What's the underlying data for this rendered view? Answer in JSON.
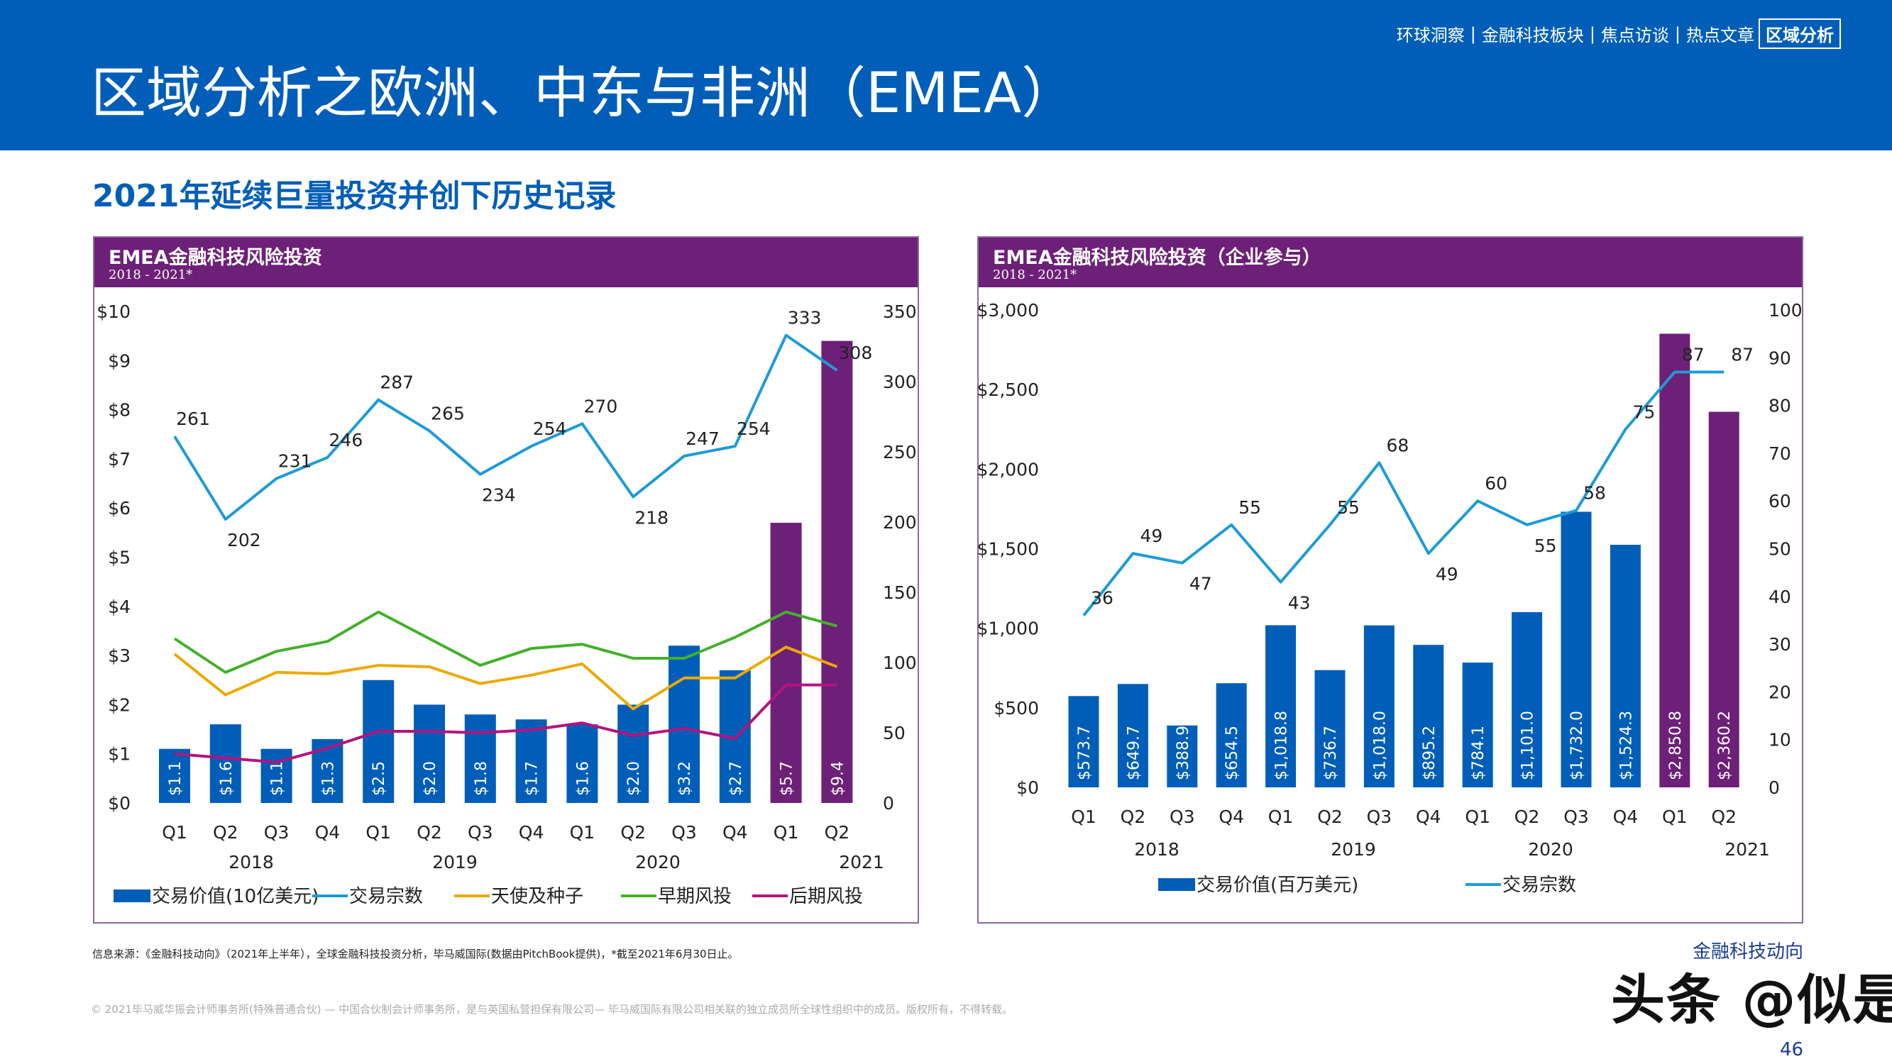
{
  "header": {
    "title": "区域分析之欧洲、中东与非洲（EMEA）",
    "nav": [
      "环球洞察",
      "金融科技板块",
      "焦点访谈",
      "热点文章",
      "区域分析"
    ],
    "nav_active": "区域分析"
  },
  "subtitle": "2021年延续巨量投资并创下历史记录",
  "colors": {
    "brand_blue": "#005EB8",
    "purple": "#6D2077",
    "count_line": "#1E9BD7",
    "angel": "#EAAA00",
    "early": "#43B02A",
    "late": "#B5137E"
  },
  "chart_data": [
    {
      "type": "bar",
      "title": "EMEA金融科技风险投资",
      "subtitle": "2018 - 2021*",
      "categories": [
        "Q1",
        "Q2",
        "Q3",
        "Q4",
        "Q1",
        "Q2",
        "Q3",
        "Q4",
        "Q1",
        "Q2",
        "Q3",
        "Q4",
        "Q1",
        "Q2"
      ],
      "years": [
        "2018",
        "2019",
        "2020",
        "2021"
      ],
      "left_axis": {
        "ylim": [
          0,
          10
        ],
        "ticks": [
          "$0",
          "$1",
          "$2",
          "$3",
          "$4",
          "$5",
          "$6",
          "$7",
          "$8",
          "$9",
          "$10"
        ]
      },
      "right_axis": {
        "ylim": [
          0,
          350
        ],
        "ticks": [
          "0",
          "50",
          "100",
          "150",
          "200",
          "250",
          "300",
          "350"
        ]
      },
      "bars": {
        "name": "交易价值(10亿美元)",
        "values": [
          1.1,
          1.6,
          1.1,
          1.3,
          2.5,
          2.0,
          1.8,
          1.7,
          1.6,
          2.0,
          3.2,
          2.7,
          5.7,
          9.4
        ],
        "labels": [
          "$1.1",
          "$1.6",
          "$1.1",
          "$1.3",
          "$2.5",
          "$2.0",
          "$1.8",
          "$1.7",
          "$1.6",
          "$2.0",
          "$3.2",
          "$2.7",
          "$5.7",
          "$9.4"
        ],
        "highlight_last": 2
      },
      "series": [
        {
          "name": "交易宗数",
          "axis": "right",
          "values": [
            261,
            202,
            231,
            246,
            287,
            265,
            234,
            254,
            270,
            218,
            247,
            254,
            333,
            308
          ],
          "labeled": true
        },
        {
          "name": "天使及种子",
          "axis": "right",
          "values": [
            106,
            77,
            93,
            92,
            98,
            97,
            85,
            91,
            99,
            67,
            89,
            89,
            111,
            97
          ]
        },
        {
          "name": "早期风投",
          "axis": "right",
          "values": [
            117,
            93,
            108,
            115,
            136,
            117,
            98,
            110,
            113,
            103,
            103,
            118,
            136,
            126
          ]
        },
        {
          "name": "后期风投",
          "axis": "right",
          "values": [
            35,
            32,
            29,
            39,
            51,
            51,
            50,
            52,
            57,
            48,
            53,
            46,
            84,
            84
          ]
        }
      ],
      "legend": "bottom",
      "grid": false
    },
    {
      "type": "bar",
      "title": "EMEA金融科技风险投资（企业参与）",
      "subtitle": "2018 - 2021*",
      "categories": [
        "Q1",
        "Q2",
        "Q3",
        "Q4",
        "Q1",
        "Q2",
        "Q3",
        "Q4",
        "Q1",
        "Q2",
        "Q3",
        "Q4",
        "Q1",
        "Q2"
      ],
      "years": [
        "2018",
        "2019",
        "2020",
        "2021"
      ],
      "left_axis": {
        "ylim": [
          0,
          3000
        ],
        "ticks": [
          "$0",
          "$500",
          "$1,000",
          "$1,500",
          "$2,000",
          "$2,500",
          "$3,000"
        ]
      },
      "right_axis": {
        "ylim": [
          0,
          100
        ],
        "ticks": [
          "0",
          "10",
          "20",
          "30",
          "40",
          "50",
          "60",
          "70",
          "80",
          "90",
          "100"
        ]
      },
      "bars": {
        "name": "交易价值(百万美元)",
        "values": [
          573.7,
          649.7,
          388.9,
          654.5,
          1018.8,
          736.7,
          1018.0,
          895.2,
          784.1,
          1101.0,
          1732.0,
          1524.3,
          2850.8,
          2360.2
        ],
        "labels": [
          "$573.7",
          "$649.7",
          "$388.9",
          "$654.5",
          "$1,018.8",
          "$736.7",
          "$1,018.0",
          "$895.2",
          "$784.1",
          "$1,101.0",
          "$1,732.0",
          "$1,524.3",
          "$2,850.8",
          "$2,360.2"
        ],
        "highlight_last": 2
      },
      "series": [
        {
          "name": "交易宗数",
          "axis": "right",
          "values": [
            36,
            49,
            47,
            55,
            43,
            55,
            68,
            49,
            60,
            55,
            58,
            75,
            87,
            87
          ],
          "labeled": true
        }
      ],
      "legend": "bottom",
      "grid": false
    }
  ],
  "source": "信息来源：《金融科技动向》（2021年上半年），全球金融科技投资分析，毕马威国际(数据由PitchBook提供)，*截至2021年6月30日止。",
  "copyright": "© 2021毕马威华振会计师事务所(特殊普通合伙) — 中国合伙制会计师事务所，是与英国私营担保有限公司— 毕马威国际有限公司相关联的独立成员所全球性组织中的成员。版权所有，不得转载。",
  "footer": {
    "brand": "金融科技动向",
    "page": "46",
    "watermark": "头条 @似是"
  }
}
